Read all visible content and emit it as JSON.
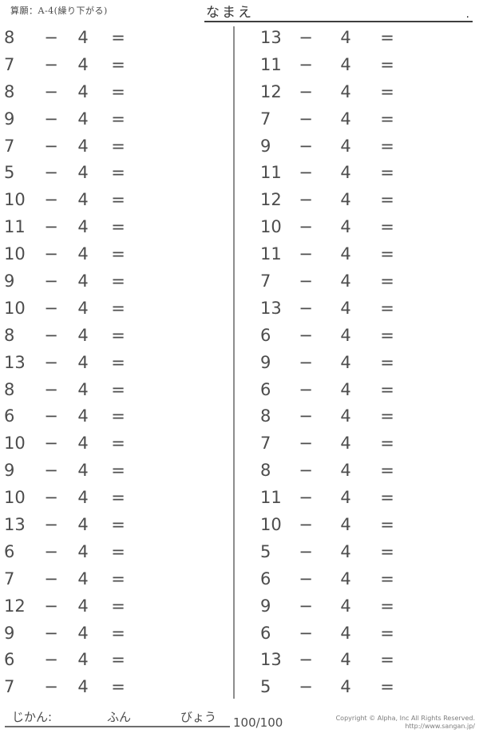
{
  "header": {
    "worksheet_label": "算願：A-4(繰り下がる)",
    "name_label": "なまえ",
    "name_line_period": "."
  },
  "problems": {
    "operator": "−",
    "subtrahend": "4",
    "equals": "=",
    "left_column": [
      8,
      7,
      8,
      9,
      7,
      5,
      10,
      11,
      10,
      9,
      10,
      8,
      13,
      8,
      6,
      10,
      9,
      10,
      13,
      6,
      7,
      12,
      9,
      6,
      7
    ],
    "right_column": [
      13,
      11,
      12,
      7,
      9,
      11,
      12,
      10,
      11,
      7,
      13,
      6,
      9,
      6,
      8,
      7,
      8,
      11,
      10,
      5,
      6,
      9,
      6,
      13,
      5
    ]
  },
  "footer": {
    "time_label": "じかん:",
    "minutes_label": "ふん",
    "seconds_label": "びょう",
    "score": "100/100",
    "copyright_line1": "Copyright © Alpha, Inc All Rights Reserved.",
    "copyright_line2": "http://www.sangan.jp/"
  }
}
